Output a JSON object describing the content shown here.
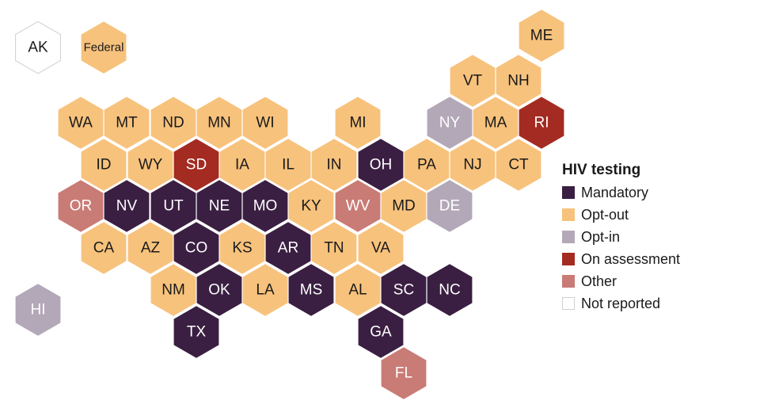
{
  "legend": {
    "title": "HIV testing",
    "items": [
      {
        "key": "mandatory",
        "label": "Mandatory",
        "color": "#3a1f42"
      },
      {
        "key": "optout",
        "label": "Opt-out",
        "color": "#f7c27c"
      },
      {
        "key": "optin",
        "label": "Opt-in",
        "color": "#b3a8b8"
      },
      {
        "key": "assess",
        "label": "On assessment",
        "color": "#a32b22"
      },
      {
        "key": "other",
        "label": "Other",
        "color": "#c97b76"
      },
      {
        "key": "none",
        "label": "Not reported",
        "color": "#ffffff"
      }
    ]
  },
  "map_data": {
    "states": [
      {
        "label": "AK",
        "status": "none"
      },
      {
        "label": "Federal",
        "status": "optout"
      },
      {
        "label": "ME",
        "status": "optout"
      },
      {
        "label": "VT",
        "status": "optout"
      },
      {
        "label": "NH",
        "status": "optout"
      },
      {
        "label": "WA",
        "status": "optout"
      },
      {
        "label": "MT",
        "status": "optout"
      },
      {
        "label": "ND",
        "status": "optout"
      },
      {
        "label": "MN",
        "status": "optout"
      },
      {
        "label": "WI",
        "status": "optout"
      },
      {
        "label": "MI",
        "status": "optout"
      },
      {
        "label": "NY",
        "status": "optin"
      },
      {
        "label": "MA",
        "status": "optout"
      },
      {
        "label": "RI",
        "status": "assess"
      },
      {
        "label": "ID",
        "status": "optout"
      },
      {
        "label": "WY",
        "status": "optout"
      },
      {
        "label": "SD",
        "status": "assess"
      },
      {
        "label": "IA",
        "status": "optout"
      },
      {
        "label": "IL",
        "status": "optout"
      },
      {
        "label": "IN",
        "status": "optout"
      },
      {
        "label": "OH",
        "status": "mandatory"
      },
      {
        "label": "PA",
        "status": "optout"
      },
      {
        "label": "NJ",
        "status": "optout"
      },
      {
        "label": "CT",
        "status": "optout"
      },
      {
        "label": "OR",
        "status": "other"
      },
      {
        "label": "NV",
        "status": "mandatory"
      },
      {
        "label": "UT",
        "status": "mandatory"
      },
      {
        "label": "NE",
        "status": "mandatory"
      },
      {
        "label": "MO",
        "status": "mandatory"
      },
      {
        "label": "KY",
        "status": "optout"
      },
      {
        "label": "WV",
        "status": "other"
      },
      {
        "label": "MD",
        "status": "optout"
      },
      {
        "label": "DE",
        "status": "optin"
      },
      {
        "label": "CA",
        "status": "optout"
      },
      {
        "label": "AZ",
        "status": "optout"
      },
      {
        "label": "CO",
        "status": "mandatory"
      },
      {
        "label": "KS",
        "status": "optout"
      },
      {
        "label": "AR",
        "status": "mandatory"
      },
      {
        "label": "TN",
        "status": "optout"
      },
      {
        "label": "VA",
        "status": "optout"
      },
      {
        "label": "NM",
        "status": "optout"
      },
      {
        "label": "OK",
        "status": "mandatory"
      },
      {
        "label": "LA",
        "status": "optout"
      },
      {
        "label": "MS",
        "status": "mandatory"
      },
      {
        "label": "AL",
        "status": "optout"
      },
      {
        "label": "SC",
        "status": "mandatory"
      },
      {
        "label": "NC",
        "status": "mandatory"
      },
      {
        "label": "HI",
        "status": "optin"
      },
      {
        "label": "TX",
        "status": "mandatory"
      },
      {
        "label": "GA",
        "status": "mandatory"
      },
      {
        "label": "FL",
        "status": "other"
      }
    ]
  }
}
